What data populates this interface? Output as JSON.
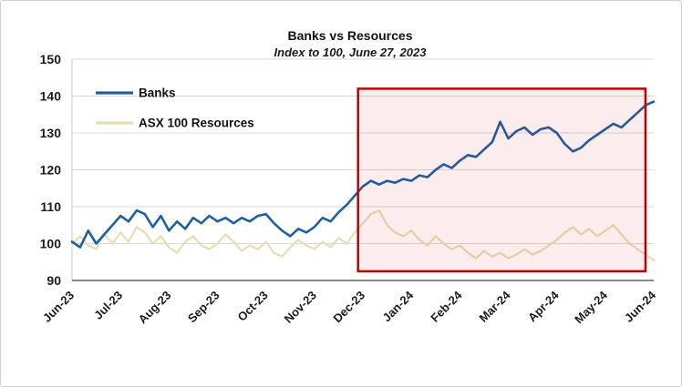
{
  "chart_data": {
    "type": "line",
    "title": "Banks vs Resources",
    "subtitle": "Index to 100, June 27, 2023",
    "xlabel": "",
    "ylabel": "",
    "ylim": [
      90,
      150
    ],
    "y_ticks": [
      90,
      100,
      110,
      120,
      130,
      140,
      150
    ],
    "x_range_months": [
      0,
      12
    ],
    "x_tick_labels": [
      "Jun-23",
      "Jul-23",
      "Aug-23",
      "Sep-23",
      "Oct-23",
      "Nov-23",
      "Dec-23",
      "Jan-24",
      "Feb-24",
      "Mar-24",
      "Apr-24",
      "May-24",
      "Jun-24"
    ],
    "grid": "horizontal",
    "legend_position": "top-left-inside",
    "series": [
      {
        "name": "Banks",
        "color": "#1d5fa7",
        "width": 2.6,
        "values": [
          100.5,
          99,
          103.5,
          100,
          102.5,
          105,
          107.5,
          106,
          109,
          108,
          104.5,
          107.5,
          103.5,
          106,
          104,
          107,
          105.5,
          107.5,
          106,
          107,
          105.5,
          107,
          106,
          107.5,
          108,
          105.5,
          103.5,
          102,
          104,
          103,
          104.5,
          107,
          106,
          108.5,
          110.5,
          113,
          115.5,
          117,
          116,
          117,
          116.5,
          117.5,
          117,
          118.5,
          118,
          120,
          121.5,
          120.5,
          122.5,
          124,
          123.5,
          125.5,
          127.5,
          133,
          128.5,
          130.5,
          131.5,
          129.5,
          131,
          131.5,
          130,
          127,
          125,
          126,
          128,
          129.5,
          131,
          132.5,
          131.5,
          133.5,
          135.5,
          137.5,
          138.5
        ]
      },
      {
        "name": "ASX 100 Resources",
        "color": "#e8dcb0",
        "width": 2.2,
        "values": [
          100,
          102,
          99.5,
          98.5,
          102.5,
          100,
          103,
          100.5,
          104.5,
          103,
          100,
          102,
          99,
          97.5,
          100.5,
          102,
          99.5,
          98.5,
          100,
          102.5,
          100.5,
          98,
          99.5,
          98.5,
          100.5,
          97.5,
          96.5,
          99,
          101,
          99.5,
          98.5,
          100.5,
          99,
          101.5,
          100,
          103,
          105.5,
          108,
          109,
          105,
          103,
          102,
          103.5,
          101,
          99.5,
          102,
          100,
          98.5,
          99.5,
          97.5,
          96,
          98,
          96.5,
          97.5,
          96,
          97,
          98.5,
          97,
          98,
          99.5,
          101,
          103,
          104.5,
          102.5,
          104,
          102,
          103.5,
          105,
          102.5,
          100,
          98.5,
          97,
          95.5
        ]
      }
    ],
    "highlight_box": {
      "x0_month": 5.9,
      "x1_month": 11.83,
      "y0": 92.5,
      "y1": 142,
      "stroke": "#c00000",
      "stroke_width": 2.5,
      "fill": "rgba(192,0,0,0.07)"
    }
  }
}
